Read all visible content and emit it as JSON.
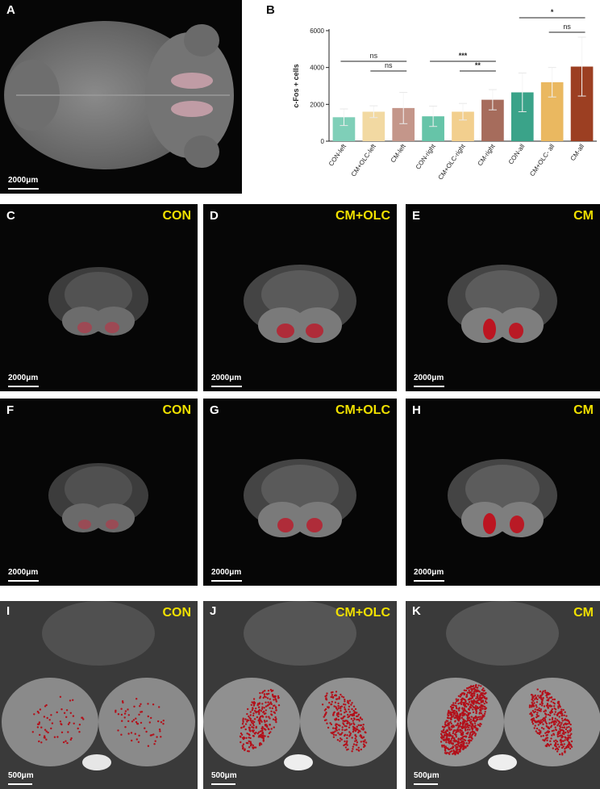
{
  "panels": {
    "A": {
      "label": "A",
      "scale": "2000μm"
    },
    "B": {
      "label": "B"
    },
    "C": {
      "label": "C",
      "condition": "CON",
      "scale": "2000μm"
    },
    "D": {
      "label": "D",
      "condition": "CM+OLC",
      "scale": "2000μm"
    },
    "E": {
      "label": "E",
      "condition": "CM",
      "scale": "2000μm"
    },
    "F": {
      "label": "F",
      "condition": "CON",
      "scale": "2000μm"
    },
    "G": {
      "label": "G",
      "condition": "CM+OLC",
      "scale": "2000μm"
    },
    "H": {
      "label": "H",
      "condition": "CM",
      "scale": "2000μm"
    },
    "I": {
      "label": "I",
      "condition": "CON",
      "scale": "500μm"
    },
    "J": {
      "label": "J",
      "condition": "CM+OLC",
      "scale": "500μm"
    },
    "K": {
      "label": "K",
      "condition": "CM",
      "scale": "500μm"
    }
  },
  "chart_data": {
    "type": "bar",
    "ylabel": "c-Fos + cells",
    "ylim": [
      0,
      6000
    ],
    "yticks": [
      0,
      2000,
      4000,
      6000
    ],
    "categories": [
      "CON-left",
      "CM+OLC-left",
      "CM-left",
      "CON-right",
      "CM+OLC-right",
      "CM-right",
      "CON-all",
      "CM+OLC- all",
      "CM-all"
    ],
    "values": [
      1300,
      1600,
      1800,
      1350,
      1600,
      2250,
      2650,
      3200,
      4050
    ],
    "errors": [
      450,
      320,
      850,
      550,
      450,
      550,
      1050,
      800,
      1600
    ],
    "colors": [
      "#7fcfb8",
      "#f2d9a2",
      "#c4968a",
      "#66c4a8",
      "#f2cf8e",
      "#a66c5c",
      "#3aa389",
      "#eab860",
      "#9c3f22"
    ],
    "significance": [
      {
        "from": 0,
        "to": 2,
        "label": "ns"
      },
      {
        "from": 1,
        "to": 2,
        "label": "ns"
      },
      {
        "from": 3,
        "to": 5,
        "label": "***"
      },
      {
        "from": 4,
        "to": 5,
        "label": "**"
      },
      {
        "from": 6,
        "to": 8,
        "label": "*"
      },
      {
        "from": 7,
        "to": 8,
        "label": "ns"
      }
    ]
  }
}
